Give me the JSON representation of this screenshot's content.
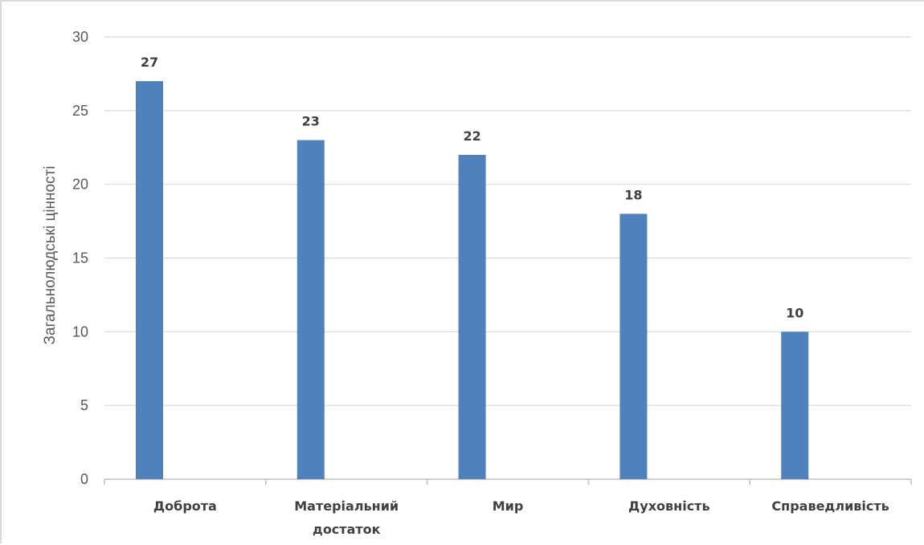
{
  "chart_data": {
    "type": "bar",
    "categories": [
      [
        "Доброта"
      ],
      [
        "Матеріальний",
        "достаток"
      ],
      [
        "Мир"
      ],
      [
        "Духовність"
      ],
      [
        "Справедливість"
      ]
    ],
    "values": [
      27,
      23,
      22,
      18,
      10
    ],
    "title": "",
    "xlabel": "",
    "ylabel": "Загальнолюдські цінності",
    "ylim": [
      0,
      30
    ],
    "yticks": [
      0,
      5,
      10,
      15,
      20,
      25,
      30
    ],
    "data_labels": true,
    "grid": true,
    "legend": "none",
    "colors": {
      "bar": "#4F81BD",
      "grid": "#d9d9d9",
      "axis": "#bfbfbf"
    }
  }
}
